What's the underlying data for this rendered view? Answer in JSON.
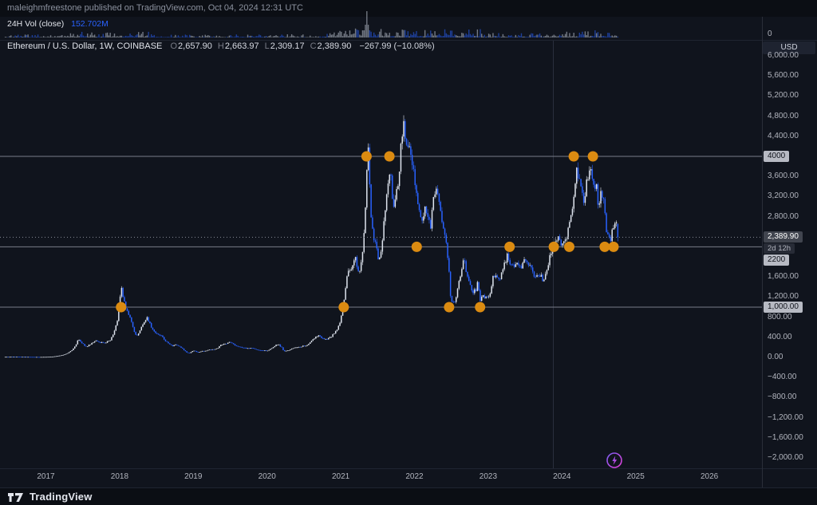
{
  "header": {
    "publish_text": "maleighmfreestone published on TradingView.com, Oct 04, 2024 12:31 UTC"
  },
  "volume_pane": {
    "label": "24H Vol (close)",
    "value": "152.702M",
    "zero_label": "0"
  },
  "symbol_line": {
    "title": "Ethereum / U.S. Dollar, 1W, COINBASE",
    "items": [
      {
        "k": "O",
        "v": "2,657.90"
      },
      {
        "k": "H",
        "v": "2,663.97"
      },
      {
        "k": "L",
        "v": "2,309.17"
      },
      {
        "k": "C",
        "v": "2,389.90"
      }
    ],
    "change": "−267.99 (−10.08%)"
  },
  "price_scale": {
    "currency": "USD",
    "ticks": [
      {
        "label": "6,000.00",
        "price": 6000
      },
      {
        "label": "5,600.00",
        "price": 5600
      },
      {
        "label": "5,200.00",
        "price": 5200
      },
      {
        "label": "4,800.00",
        "price": 4800
      },
      {
        "label": "4,400.00",
        "price": 4400
      },
      {
        "label": "3,600.00",
        "price": 3600
      },
      {
        "label": "3,200.00",
        "price": 3200
      },
      {
        "label": "2,800.00",
        "price": 2800
      },
      {
        "label": "1,600.00",
        "price": 1600
      },
      {
        "label": "1,200.00",
        "price": 1200
      },
      {
        "label": "800.00",
        "price": 800
      },
      {
        "label": "400.00",
        "price": 400
      },
      {
        "label": "0.00",
        "price": 0
      },
      {
        "label": "−400.00",
        "price": -400
      },
      {
        "label": "−800.00",
        "price": -800
      },
      {
        "label": "−1,200.00",
        "price": -1200
      },
      {
        "label": "−1,600.00",
        "price": -1600
      },
      {
        "label": "−2,000.00",
        "price": -2000
      }
    ],
    "line_badges": [
      {
        "label": "4000",
        "price": 4000
      },
      {
        "label": "2200",
        "price": 2200
      },
      {
        "label": "1,000.00",
        "price": 1000
      }
    ],
    "current": {
      "label": "2,389.90",
      "price": 2389.9,
      "countdown": "2d 12h"
    }
  },
  "time_axis": {
    "years": [
      {
        "label": "2017",
        "year": 2017
      },
      {
        "label": "2018",
        "year": 2018
      },
      {
        "label": "2019",
        "year": 2019
      },
      {
        "label": "2020",
        "year": 2020
      },
      {
        "label": "2021",
        "year": 2021
      },
      {
        "label": "2022",
        "year": 2022
      },
      {
        "label": "2023",
        "year": 2023
      },
      {
        "label": "2024",
        "year": 2024
      },
      {
        "label": "2025",
        "year": 2025
      },
      {
        "label": "2026",
        "year": 2026
      }
    ]
  },
  "footer": {
    "brand": "TradingView"
  },
  "chart_data": {
    "type": "candlestick",
    "title": "Ethereum / U.S. Dollar",
    "timeframe": "1W",
    "exchange": "COINBASE",
    "ohlc": {
      "open": 2657.9,
      "high": 2663.97,
      "low": 2309.17,
      "close": 2389.9,
      "change": -267.99,
      "change_pct": -10.08
    },
    "y_axis": {
      "min": -2000,
      "max": 6000,
      "tick_step": 400,
      "currency": "USD"
    },
    "x_axis": {
      "unit": "decimal_year",
      "label_years": [
        2017,
        2018,
        2019,
        2020,
        2021,
        2022,
        2023,
        2024,
        2025,
        2026
      ]
    },
    "levels": [
      4000,
      2200,
      1000
    ],
    "level_color": "#787d89",
    "marker_color": "#db8b11",
    "markers": [
      {
        "t": 2018.02,
        "price": 1000
      },
      {
        "t": 2021.04,
        "price": 1000
      },
      {
        "t": 2021.35,
        "price": 4000
      },
      {
        "t": 2021.66,
        "price": 4000
      },
      {
        "t": 2022.03,
        "price": 2200
      },
      {
        "t": 2022.47,
        "price": 1000
      },
      {
        "t": 2022.89,
        "price": 1000
      },
      {
        "t": 2023.29,
        "price": 2200
      },
      {
        "t": 2023.89,
        "price": 2200
      },
      {
        "t": 2024.1,
        "price": 2200
      },
      {
        "t": 2024.16,
        "price": 4000
      },
      {
        "t": 2024.42,
        "price": 4000
      },
      {
        "t": 2024.58,
        "price": 2200
      },
      {
        "t": 2024.7,
        "price": 2200
      }
    ],
    "volume_spike_week": 2021.35,
    "up_color": "#dfe5ef",
    "down_color": "#2962ff",
    "price_anchors": [
      [
        2016.45,
        11
      ],
      [
        2016.6,
        12.5
      ],
      [
        2016.75,
        11
      ],
      [
        2016.9,
        8.5
      ],
      [
        2017.0,
        10
      ],
      [
        2017.08,
        14
      ],
      [
        2017.16,
        28
      ],
      [
        2017.24,
        52
      ],
      [
        2017.3,
        85
      ],
      [
        2017.38,
        180
      ],
      [
        2017.44,
        350
      ],
      [
        2017.5,
        270
      ],
      [
        2017.55,
        210
      ],
      [
        2017.62,
        280
      ],
      [
        2017.68,
        330
      ],
      [
        2017.73,
        290
      ],
      [
        2017.8,
        300
      ],
      [
        2017.86,
        320
      ],
      [
        2017.92,
        460
      ],
      [
        2017.97,
        730
      ],
      [
        2018.02,
        1390
      ],
      [
        2018.05,
        1180
      ],
      [
        2018.09,
        920
      ],
      [
        2018.13,
        860
      ],
      [
        2018.18,
        600
      ],
      [
        2018.23,
        420
      ],
      [
        2018.28,
        550
      ],
      [
        2018.33,
        690
      ],
      [
        2018.37,
        790
      ],
      [
        2018.42,
        640
      ],
      [
        2018.47,
        520
      ],
      [
        2018.52,
        460
      ],
      [
        2018.57,
        430
      ],
      [
        2018.62,
        330
      ],
      [
        2018.67,
        280
      ],
      [
        2018.72,
        230
      ],
      [
        2018.77,
        260
      ],
      [
        2018.82,
        210
      ],
      [
        2018.87,
        150
      ],
      [
        2018.91,
        100
      ],
      [
        2018.95,
        90
      ],
      [
        2019.0,
        140
      ],
      [
        2019.06,
        105
      ],
      [
        2019.12,
        125
      ],
      [
        2019.18,
        135
      ],
      [
        2019.25,
        160
      ],
      [
        2019.32,
        175
      ],
      [
        2019.38,
        250
      ],
      [
        2019.44,
        270
      ],
      [
        2019.48,
        310
      ],
      [
        2019.53,
        290
      ],
      [
        2019.58,
        230
      ],
      [
        2019.65,
        200
      ],
      [
        2019.72,
        180
      ],
      [
        2019.8,
        185
      ],
      [
        2019.87,
        150
      ],
      [
        2019.93,
        140
      ],
      [
        2020.0,
        130
      ],
      [
        2020.05,
        170
      ],
      [
        2020.1,
        225
      ],
      [
        2020.15,
        265
      ],
      [
        2020.2,
        195
      ],
      [
        2020.23,
        125
      ],
      [
        2020.28,
        135
      ],
      [
        2020.33,
        170
      ],
      [
        2020.38,
        200
      ],
      [
        2020.45,
        210
      ],
      [
        2020.5,
        230
      ],
      [
        2020.55,
        240
      ],
      [
        2020.6,
        320
      ],
      [
        2020.65,
        400
      ],
      [
        2020.7,
        435
      ],
      [
        2020.75,
        385
      ],
      [
        2020.8,
        355
      ],
      [
        2020.85,
        390
      ],
      [
        2020.9,
        460
      ],
      [
        2020.95,
        560
      ],
      [
        2021.0,
        740
      ],
      [
        2021.04,
        1100
      ],
      [
        2021.08,
        1550
      ],
      [
        2021.12,
        1750
      ],
      [
        2021.16,
        1850
      ],
      [
        2021.2,
        1950
      ],
      [
        2021.24,
        1650
      ],
      [
        2021.28,
        1850
      ],
      [
        2021.31,
        2250
      ],
      [
        2021.34,
        3200
      ],
      [
        2021.37,
        4200
      ],
      [
        2021.39,
        3450
      ],
      [
        2021.42,
        2550
      ],
      [
        2021.45,
        2350
      ],
      [
        2021.48,
        2150
      ],
      [
        2021.52,
        1950
      ],
      [
        2021.56,
        2250
      ],
      [
        2021.6,
        2900
      ],
      [
        2021.64,
        3450
      ],
      [
        2021.67,
        3800
      ],
      [
        2021.7,
        3150
      ],
      [
        2021.73,
        2950
      ],
      [
        2021.77,
        3450
      ],
      [
        2021.8,
        3850
      ],
      [
        2021.83,
        4350
      ],
      [
        2021.86,
        4680
      ],
      [
        2021.89,
        4250
      ],
      [
        2021.92,
        4100
      ],
      [
        2021.95,
        4050
      ],
      [
        2021.98,
        3950
      ],
      [
        2022.02,
        3350
      ],
      [
        2022.06,
        3050
      ],
      [
        2022.1,
        2650
      ],
      [
        2022.14,
        2900
      ],
      [
        2022.18,
        2750
      ],
      [
        2022.22,
        2650
      ],
      [
        2022.26,
        3100
      ],
      [
        2022.3,
        3430
      ],
      [
        2022.34,
        2950
      ],
      [
        2022.38,
        2750
      ],
      [
        2022.42,
        2350
      ],
      [
        2022.46,
        1950
      ],
      [
        2022.49,
        1230
      ],
      [
        2022.52,
        1080
      ],
      [
        2022.56,
        1130
      ],
      [
        2022.6,
        1480
      ],
      [
        2022.64,
        1720
      ],
      [
        2022.67,
        1950
      ],
      [
        2022.71,
        1600
      ],
      [
        2022.75,
        1450
      ],
      [
        2022.79,
        1330
      ],
      [
        2022.83,
        1300
      ],
      [
        2022.86,
        1480
      ],
      [
        2022.89,
        1160
      ],
      [
        2022.93,
        1220
      ],
      [
        2022.97,
        1200
      ],
      [
        2023.02,
        1260
      ],
      [
        2023.06,
        1550
      ],
      [
        2023.1,
        1660
      ],
      [
        2023.14,
        1530
      ],
      [
        2023.18,
        1700
      ],
      [
        2023.22,
        1850
      ],
      [
        2023.26,
        2080
      ],
      [
        2023.3,
        1870
      ],
      [
        2023.35,
        1810
      ],
      [
        2023.4,
        1900
      ],
      [
        2023.45,
        1770
      ],
      [
        2023.5,
        1930
      ],
      [
        2023.55,
        1870
      ],
      [
        2023.6,
        1700
      ],
      [
        2023.65,
        1640
      ],
      [
        2023.7,
        1600
      ],
      [
        2023.75,
        1560
      ],
      [
        2023.8,
        1800
      ],
      [
        2023.85,
        2060
      ],
      [
        2023.9,
        2220
      ],
      [
        2023.95,
        2350
      ],
      [
        2024.0,
        2280
      ],
      [
        2024.04,
        2320
      ],
      [
        2024.08,
        2480
      ],
      [
        2024.12,
        2700
      ],
      [
        2024.16,
        3180
      ],
      [
        2024.2,
        3880
      ],
      [
        2024.23,
        3550
      ],
      [
        2024.26,
        3320
      ],
      [
        2024.3,
        3120
      ],
      [
        2024.33,
        3520
      ],
      [
        2024.36,
        3730
      ],
      [
        2024.4,
        3620
      ],
      [
        2024.44,
        3480
      ],
      [
        2024.47,
        3360
      ],
      [
        2024.5,
        3010
      ],
      [
        2024.53,
        3400
      ],
      [
        2024.56,
        3170
      ],
      [
        2024.6,
        2550
      ],
      [
        2024.63,
        2440
      ],
      [
        2024.66,
        2300
      ],
      [
        2024.69,
        2520
      ],
      [
        2024.72,
        2640
      ],
      [
        2024.745,
        2658
      ],
      [
        2024.76,
        2390
      ]
    ]
  }
}
